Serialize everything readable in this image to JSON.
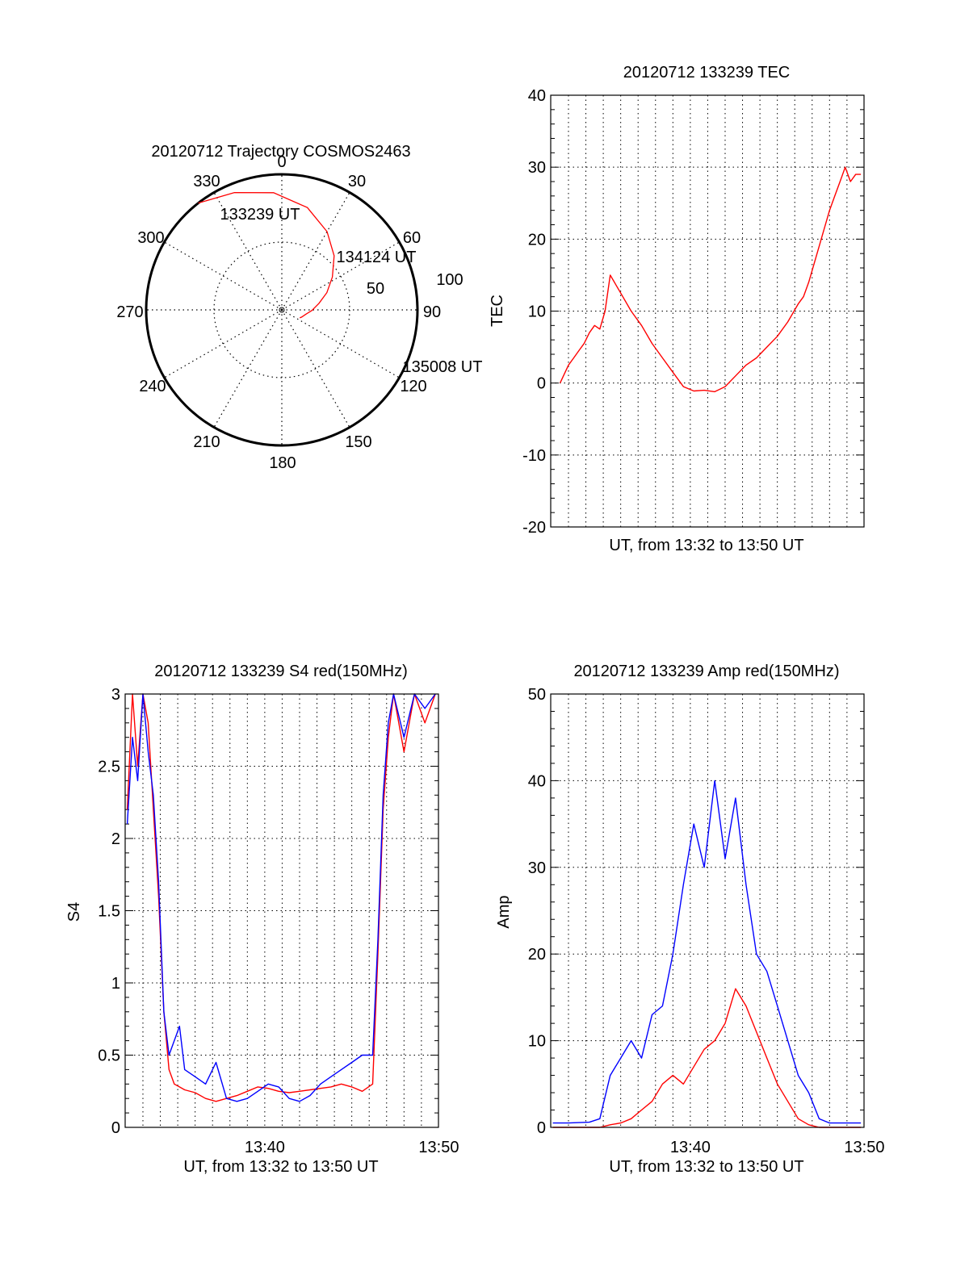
{
  "chart_data": [
    {
      "id": "trajectory",
      "type": "polar",
      "title": "20120712 Trajectory COSMOS2463",
      "azimuth_labels": [
        "0",
        "30",
        "60",
        "90",
        "120",
        "150",
        "180",
        "210",
        "240",
        "270",
        "300",
        "330"
      ],
      "elevation_labels": [
        "50",
        "100"
      ],
      "grid": true,
      "series": [
        {
          "color": "#ff0000",
          "points_az_el": [
            [
              -38,
              0
            ],
            [
              -22,
              6
            ],
            [
              -4,
              12
            ],
            [
              14,
              20
            ],
            [
              30,
              30
            ],
            [
              44,
              40
            ],
            [
              57,
              50
            ],
            [
              69,
              58
            ],
            [
              80,
              65
            ],
            [
              91,
              70
            ],
            [
              101,
              74
            ],
            [
              110,
              76
            ],
            [
              114,
              77
            ]
          ]
        }
      ],
      "annotations": [
        {
          "text": "133239 UT",
          "az": -38,
          "el": 0
        },
        {
          "text": "134124 UT",
          "az": 40,
          "el": 36
        },
        {
          "text": "135008 UT",
          "az": 114,
          "el": 77
        }
      ]
    },
    {
      "id": "tec",
      "type": "line",
      "title": "20120712 133239 TEC",
      "xlabel": "UT, from 13:32 to 13:50 UT",
      "ylabel": "TEC",
      "ylim": [
        -20,
        40
      ],
      "yticks": [
        "-20",
        "-10",
        "0",
        "10",
        "20",
        "30",
        "40"
      ],
      "xlim": [
        13.533,
        13.833
      ],
      "grid": true,
      "series": [
        {
          "color": "#ff0000",
          "x": [
            13.542,
            13.55,
            13.555,
            13.56,
            13.565,
            13.57,
            13.575,
            13.58,
            13.585,
            13.59,
            13.6,
            13.61,
            13.62,
            13.63,
            13.64,
            13.65,
            13.655,
            13.66,
            13.67,
            13.68,
            13.69,
            13.7,
            13.71,
            13.72,
            13.73,
            13.74,
            13.75,
            13.76,
            13.77,
            13.775,
            13.78,
            13.79,
            13.8,
            13.805,
            13.81,
            13.815,
            13.82,
            13.825,
            13.83
          ],
          "y": [
            0,
            2.5,
            3.5,
            4.5,
            5.5,
            7,
            8,
            7.5,
            10,
            15,
            12.5,
            10,
            8,
            5.5,
            3.5,
            1.5,
            0.5,
            -0.5,
            -1.1,
            -1,
            -1.2,
            -0.5,
            1,
            2.5,
            3.5,
            5,
            6.5,
            8.5,
            11,
            12,
            14,
            19,
            24,
            26,
            28,
            30,
            28,
            29,
            29
          ]
        }
      ]
    },
    {
      "id": "s4",
      "type": "line",
      "title": "20120712 133239 S4 red(150MHz)",
      "xlabel": "UT, from 13:32 to 13:50 UT",
      "ylabel": "S4",
      "ylim": [
        0,
        3
      ],
      "yticks": [
        "0",
        "0.5",
        "1",
        "1.5",
        "2",
        "2.5",
        "3"
      ],
      "xlim": [
        13.533,
        13.833
      ],
      "xticks": [
        "13:40",
        "13:50"
      ],
      "grid": true,
      "series": [
        {
          "color": "#ff0000",
          "x": [
            13.535,
            13.54,
            13.545,
            13.55,
            13.555,
            13.56,
            13.565,
            13.57,
            13.575,
            13.58,
            13.585,
            13.59,
            13.6,
            13.61,
            13.62,
            13.63,
            13.64,
            13.65,
            13.66,
            13.67,
            13.68,
            13.69,
            13.7,
            13.71,
            13.72,
            13.73,
            13.74,
            13.75,
            13.76,
            13.77,
            13.775,
            13.78,
            13.785,
            13.79,
            13.8,
            13.81,
            13.82,
            13.83
          ],
          "y": [
            2.2,
            3,
            2.5,
            3,
            2.8,
            2.2,
            1.6,
            0.8,
            0.4,
            0.3,
            0.28,
            0.26,
            0.24,
            0.2,
            0.18,
            0.2,
            0.22,
            0.25,
            0.28,
            0.27,
            0.25,
            0.24,
            0.25,
            0.26,
            0.27,
            0.28,
            0.3,
            0.28,
            0.25,
            0.3,
            1.2,
            2.2,
            2.7,
            3,
            2.6,
            3,
            2.8,
            3
          ]
        },
        {
          "color": "#0000ff",
          "x": [
            13.535,
            13.54,
            13.545,
            13.55,
            13.555,
            13.56,
            13.565,
            13.57,
            13.575,
            13.58,
            13.585,
            13.59,
            13.6,
            13.61,
            13.62,
            13.63,
            13.64,
            13.65,
            13.66,
            13.67,
            13.68,
            13.69,
            13.7,
            13.71,
            13.72,
            13.73,
            13.74,
            13.75,
            13.76,
            13.77,
            13.775,
            13.78,
            13.785,
            13.79,
            13.8,
            13.81,
            13.82,
            13.83
          ],
          "y": [
            2.1,
            2.7,
            2.4,
            3,
            2.6,
            2.3,
            1.7,
            0.8,
            0.5,
            0.6,
            0.7,
            0.4,
            0.35,
            0.3,
            0.45,
            0.2,
            0.18,
            0.2,
            0.25,
            0.3,
            0.28,
            0.2,
            0.18,
            0.22,
            0.3,
            0.35,
            0.4,
            0.45,
            0.5,
            0.5,
            1.3,
            2.3,
            2.8,
            3,
            2.7,
            3,
            2.9,
            3
          ]
        }
      ]
    },
    {
      "id": "amp",
      "type": "line",
      "title": "20120712 133239 Amp red(150MHz)",
      "xlabel": "UT, from 13:32 to 13:50 UT",
      "ylabel": "Amp",
      "ylim": [
        0,
        50
      ],
      "yticks": [
        "0",
        "10",
        "20",
        "30",
        "40",
        "50"
      ],
      "xlim": [
        13.533,
        13.833
      ],
      "xticks": [
        "13:40",
        "13:50"
      ],
      "grid": true,
      "series": [
        {
          "color": "#0000ff",
          "x": [
            13.535,
            13.55,
            13.57,
            13.58,
            13.59,
            13.6,
            13.61,
            13.62,
            13.63,
            13.64,
            13.65,
            13.66,
            13.67,
            13.68,
            13.69,
            13.7,
            13.71,
            13.72,
            13.73,
            13.74,
            13.75,
            13.76,
            13.77,
            13.78,
            13.79,
            13.8,
            13.81,
            13.82,
            13.83
          ],
          "y": [
            0.5,
            0.5,
            0.6,
            1,
            6,
            8,
            10,
            8,
            13,
            14,
            20,
            28,
            35,
            30,
            40,
            31,
            38,
            28,
            20,
            18,
            14,
            10,
            6,
            4,
            1,
            0.5,
            0.5,
            0.5,
            0.5
          ]
        },
        {
          "color": "#ff0000",
          "x": [
            13.535,
            13.55,
            13.57,
            13.58,
            13.59,
            13.6,
            13.61,
            13.62,
            13.63,
            13.64,
            13.65,
            13.66,
            13.67,
            13.68,
            13.69,
            13.7,
            13.71,
            13.72,
            13.73,
            13.74,
            13.75,
            13.76,
            13.77,
            13.78,
            13.79,
            13.8,
            13.83
          ],
          "y": [
            0,
            0,
            0,
            0,
            0.3,
            0.5,
            1,
            2,
            3,
            5,
            6,
            5,
            7,
            9,
            10,
            12,
            16,
            14,
            11,
            8,
            5,
            3,
            1,
            0.3,
            0,
            0,
            0
          ]
        }
      ]
    }
  ]
}
